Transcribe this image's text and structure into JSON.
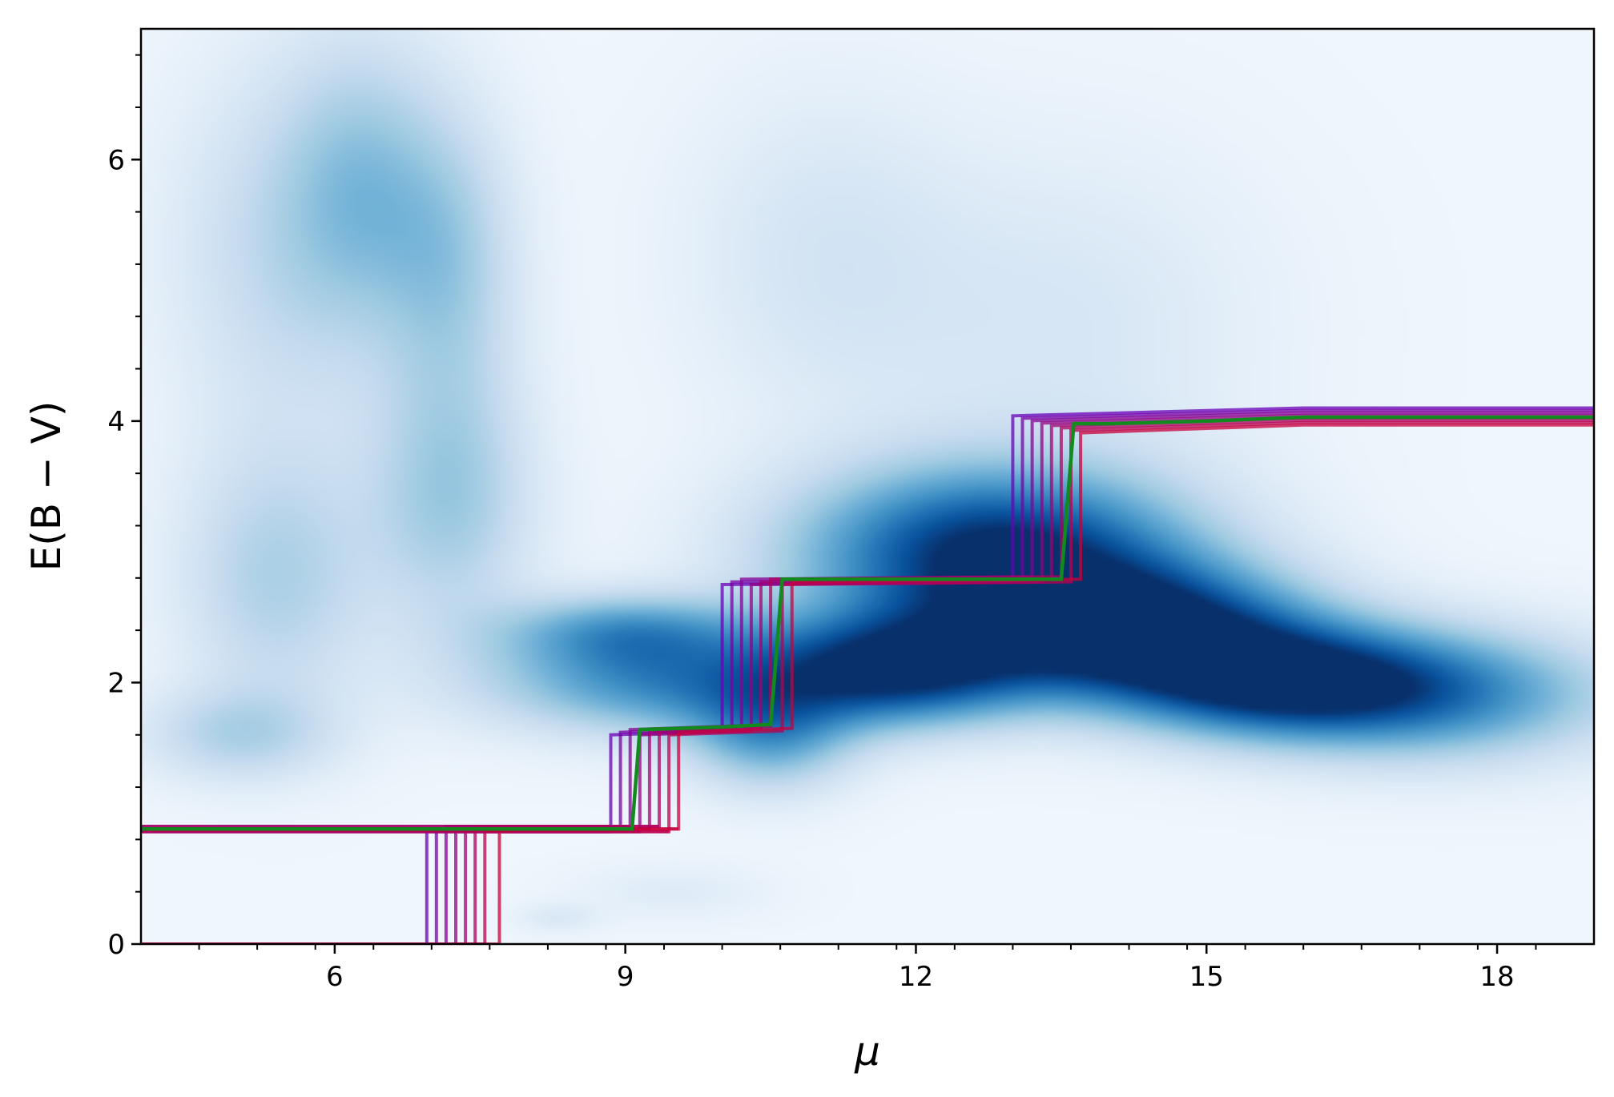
{
  "chart_data": {
    "type": "heatmap",
    "title": "",
    "xlabel": "μ",
    "ylabel": "E(B − V)",
    "xlim": [
      4.0,
      19.0
    ],
    "ylim": [
      0,
      7.0
    ],
    "x_ticks": [
      6,
      9,
      12,
      15,
      18
    ],
    "x_tick_labels": [
      "6",
      "9",
      "12",
      "15",
      "18"
    ],
    "y_ticks": [
      0,
      2,
      4,
      6
    ],
    "y_tick_labels": [
      "0",
      "2",
      "4",
      "6"
    ],
    "x_minor_step": 0.6,
    "y_minor_step": 0.4,
    "grid": false,
    "legend": "none",
    "density_colormap": "Blues",
    "colors": {
      "density_low": "#f7fbff",
      "density_mid": "#6baed6",
      "density_high": "#08306b",
      "sample_start": "#6a00b8",
      "sample_end": "#c8003c",
      "best_fit": "#138a1e"
    },
    "density_components": [
      {
        "mu": 5.0,
        "ebv": 1.6,
        "sigma_mu": 0.7,
        "sigma_ebv": 0.25,
        "weight": 0.25
      },
      {
        "mu": 5.4,
        "ebv": 2.8,
        "sigma_mu": 0.7,
        "sigma_ebv": 0.7,
        "weight": 0.28
      },
      {
        "mu": 5.4,
        "ebv": 5.3,
        "sigma_mu": 0.8,
        "sigma_ebv": 1.0,
        "weight": 0.2
      },
      {
        "mu": 6.3,
        "ebv": 5.8,
        "sigma_mu": 0.6,
        "sigma_ebv": 0.8,
        "weight": 0.3
      },
      {
        "mu": 7.2,
        "ebv": 3.4,
        "sigma_mu": 0.6,
        "sigma_ebv": 0.7,
        "weight": 0.32
      },
      {
        "mu": 7.2,
        "ebv": 5.2,
        "sigma_mu": 0.5,
        "sigma_ebv": 0.8,
        "weight": 0.28
      },
      {
        "mu": 9.3,
        "ebv": 2.0,
        "sigma_mu": 1.2,
        "sigma_ebv": 0.28,
        "weight": 0.55
      },
      {
        "mu": 9.0,
        "ebv": 2.4,
        "sigma_mu": 0.9,
        "sigma_ebv": 0.2,
        "weight": 0.45
      },
      {
        "mu": 10.5,
        "ebv": 1.6,
        "sigma_mu": 0.6,
        "sigma_ebv": 0.3,
        "weight": 0.45
      },
      {
        "mu": 11.8,
        "ebv": 2.1,
        "sigma_mu": 1.0,
        "sigma_ebv": 0.3,
        "weight": 0.9
      },
      {
        "mu": 12.8,
        "ebv": 3.0,
        "sigma_mu": 1.4,
        "sigma_ebv": 0.45,
        "weight": 0.95
      },
      {
        "mu": 14.3,
        "ebv": 2.4,
        "sigma_mu": 1.2,
        "sigma_ebv": 0.35,
        "weight": 0.95
      },
      {
        "mu": 15.8,
        "ebv": 2.0,
        "sigma_mu": 1.2,
        "sigma_ebv": 0.3,
        "weight": 0.85
      },
      {
        "mu": 17.5,
        "ebv": 1.9,
        "sigma_mu": 1.3,
        "sigma_ebv": 0.35,
        "weight": 0.5
      },
      {
        "mu": 11.0,
        "ebv": 5.3,
        "sigma_mu": 1.0,
        "sigma_ebv": 0.9,
        "weight": 0.12
      },
      {
        "mu": 13.5,
        "ebv": 4.7,
        "sigma_mu": 1.5,
        "sigma_ebv": 1.0,
        "weight": 0.12
      },
      {
        "mu": 9.5,
        "ebv": 0.4,
        "sigma_mu": 0.7,
        "sigma_ebv": 0.15,
        "weight": 0.08
      },
      {
        "mu": 8.3,
        "ebv": 0.2,
        "sigma_mu": 0.3,
        "sigma_ebv": 0.08,
        "weight": 0.1
      }
    ],
    "best_fit": {
      "name": "best fit",
      "x": [
        4.0,
        9.07,
        9.15,
        10.0,
        10.5,
        10.62,
        13.5,
        13.63,
        14.0,
        15.0,
        16.0,
        19.0
      ],
      "y": [
        0.88,
        0.88,
        1.64,
        1.66,
        1.68,
        2.79,
        2.79,
        3.98,
        3.98,
        4.0,
        4.03,
        4.03
      ]
    },
    "samples": {
      "step_1_mu": [
        6.95,
        7.05,
        7.15,
        7.25,
        7.35,
        7.45,
        7.55,
        7.7
      ],
      "step_1_ebv": [
        0.0,
        0.88
      ],
      "step_2_mu": [
        8.85,
        8.95,
        9.05,
        9.15,
        9.25,
        9.35,
        9.45,
        9.55
      ],
      "step_2_ebv": [
        0.88,
        1.62
      ],
      "step_3_mu": [
        10.0,
        10.1,
        10.2,
        10.3,
        10.4,
        10.5,
        10.62,
        10.72
      ],
      "step_3_ebv": [
        1.65,
        2.77
      ],
      "step_4_mu": [
        13.0,
        13.1,
        13.2,
        13.3,
        13.4,
        13.5,
        13.6,
        13.7
      ],
      "step_4_ebv": [
        2.79,
        4.0
      ],
      "final_ebv_min": 3.97,
      "final_ebv_max": 4.1,
      "zero_plateau_ebv": [
        0.0,
        0.02
      ]
    }
  }
}
